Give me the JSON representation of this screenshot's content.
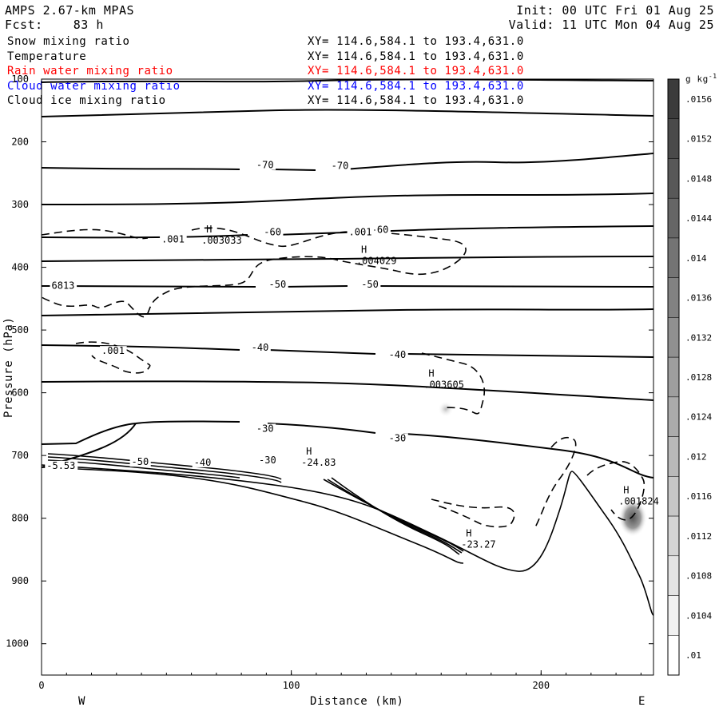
{
  "header": {
    "model": "AMPS 2.67-km MPAS",
    "fcst_label": "Fcst:",
    "fcst_hours": "83 h",
    "init": "Init: 00 UTC Fri 01 Aug 25",
    "valid": "Valid: 11 UTC Mon 04 Aug 25"
  },
  "fields": [
    {
      "name": "Snow mixing ratio",
      "xy": "XY= 114.6,584.1 to 193.4,631.0",
      "color": "#000000"
    },
    {
      "name": "Temperature",
      "xy": "XY= 114.6,584.1 to 193.4,631.0",
      "color": "#000000"
    },
    {
      "name": "Rain water mixing ratio",
      "xy": "XY= 114.6,584.1 to 193.4,631.0",
      "color": "#ff0000"
    },
    {
      "name": "Cloud water mixing ratio",
      "xy": "XY= 114.6,584.1 to 193.4,631.0",
      "color": "#0000ff"
    },
    {
      "name": "Cloud ice mixing ratio",
      "xy": "XY= 114.6,584.1 to 193.4,631.0",
      "color": "#000000"
    }
  ],
  "axes": {
    "y_title": "Pressure (hPa)",
    "x_title": "Distance (km)",
    "y_ticks": [
      "100",
      "200",
      "300",
      "400",
      "500",
      "600",
      "700",
      "800",
      "900",
      "1000"
    ],
    "x_ticks": [
      "0",
      "100",
      "200"
    ],
    "west": "W",
    "east": "E"
  },
  "colorbar": {
    "unit": "g kg",
    "unit_sup": "-1",
    "labels": [
      ".0156",
      ".0152",
      ".0148",
      ".0144",
      ".014",
      ".0136",
      ".0132",
      ".0128",
      ".0124",
      ".012",
      ".0116",
      ".0112",
      ".0108",
      ".0104",
      ".01"
    ]
  },
  "chart_data": {
    "type": "contour",
    "title": "AMPS 2.67-km MPAS",
    "xlabel": "Distance (km)",
    "ylabel": "Pressure (hPa)",
    "xlim": [
      0,
      245
    ],
    "ylim": [
      1050,
      100
    ],
    "temperature_isotherms": [
      {
        "value": -70,
        "label": "-70"
      },
      {
        "value": -60,
        "label": "-60"
      },
      {
        "value": -50,
        "label": "-50"
      },
      {
        "value": -40,
        "label": "-40"
      },
      {
        "value": -30,
        "label": "-30"
      }
    ],
    "contour_labels": [
      {
        "text": "-70",
        "x": 86,
        "p": 241
      },
      {
        "text": "-70",
        "x": 116,
        "p": 242
      },
      {
        "text": "-60",
        "x": 89,
        "p": 348
      },
      {
        "text": "-60",
        "x": 132,
        "p": 344
      },
      {
        "text": "-50",
        "x": 91,
        "p": 431
      },
      {
        "text": "-50",
        "x": 128,
        "p": 431
      },
      {
        "text": "-40",
        "x": 84,
        "p": 532
      },
      {
        "text": "-40",
        "x": 139,
        "p": 543
      },
      {
        "text": "-30",
        "x": 86,
        "p": 661
      },
      {
        "text": "-30",
        "x": 139,
        "p": 676
      },
      {
        "text": "-30",
        "x": 87,
        "p": 711
      },
      {
        "text": "-40",
        "x": 61,
        "p": 715
      },
      {
        "text": "-50",
        "x": 36,
        "p": 714
      },
      {
        "text": ".001",
        "x": 48,
        "p": 359
      },
      {
        "text": ".001",
        "x": 123,
        "p": 348
      },
      {
        "text": ".001",
        "x": 24,
        "p": 537
      },
      {
        "text": "-5.53",
        "x": 2,
        "p": 720
      },
      {
        "text": "6813",
        "x": 4,
        "p": 433
      }
    ],
    "extrema": [
      {
        "type": "H",
        "value": ".003033",
        "x": 64,
        "p": 357
      },
      {
        "type": "H",
        "value": ".004029",
        "x": 126,
        "p": 390
      },
      {
        "type": "H",
        "value": ".003605",
        "x": 153,
        "p": 587
      },
      {
        "type": "H",
        "value": "-24.83",
        "x": 104,
        "p": 711
      },
      {
        "type": "H",
        "value": "-23.27",
        "x": 168,
        "p": 842
      },
      {
        "type": "H",
        "value": ".001824",
        "x": 231,
        "p": 773
      }
    ],
    "shaded_field": {
      "name": "Rain water mixing ratio",
      "unit": "g kg-1",
      "levels": [
        0.01,
        0.0104,
        0.0108,
        0.0112,
        0.0116,
        0.012,
        0.0124,
        0.0128,
        0.0132,
        0.0136,
        0.014,
        0.0144,
        0.0148,
        0.0152,
        0.0156
      ]
    }
  }
}
